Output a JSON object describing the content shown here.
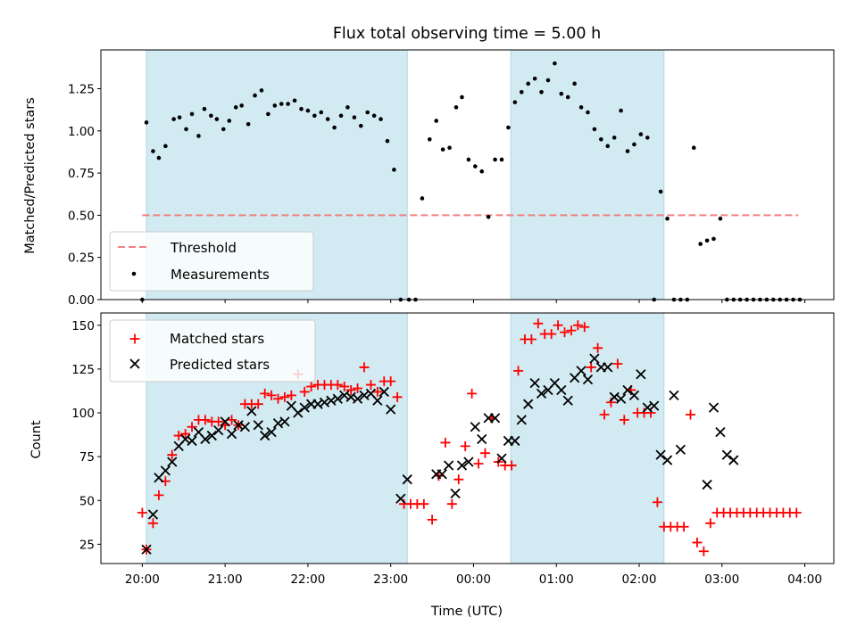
{
  "chart_data": [
    {
      "type": "scatter",
      "title": "Flux total observing time = 5.00 h",
      "xlabel": "",
      "ylabel": "Matched/Predicted stars",
      "xlim": [
        -0.5,
        8.35
      ],
      "ylim": [
        0,
        1.48
      ],
      "yticks": [
        0.0,
        0.25,
        0.5,
        0.75,
        1.0,
        1.25
      ],
      "ytick_labels": [
        "0.00",
        "0.25",
        "0.50",
        "0.75",
        "1.00",
        "1.25"
      ],
      "shaded_spans": [
        [
          0.05,
          3.2
        ],
        [
          4.45,
          6.3
        ]
      ],
      "shade_color": "#add8e6",
      "legend": {
        "position": "lower-left",
        "entries": [
          "Threshold",
          "Measurements"
        ]
      },
      "series": [
        {
          "name": "Threshold",
          "kind": "line",
          "style": "dashed",
          "color": "#f08080",
          "x": [
            0.0,
            7.92
          ],
          "y": [
            0.5,
            0.5
          ]
        },
        {
          "name": "Measurements",
          "kind": "points",
          "color": "#000000",
          "x": [
            0.0,
            0.05,
            0.13,
            0.2,
            0.28,
            0.38,
            0.45,
            0.53,
            0.6,
            0.68,
            0.75,
            0.83,
            0.9,
            0.98,
            1.05,
            1.13,
            1.2,
            1.28,
            1.36,
            1.44,
            1.52,
            1.6,
            1.68,
            1.76,
            1.84,
            1.92,
            2.0,
            2.08,
            2.16,
            2.24,
            2.32,
            2.4,
            2.48,
            2.56,
            2.64,
            2.72,
            2.8,
            2.88,
            2.96,
            3.04,
            3.12,
            3.22,
            3.3,
            3.38,
            3.47,
            3.55,
            3.63,
            3.71,
            3.79,
            3.86,
            3.94,
            4.02,
            4.1,
            4.18,
            4.26,
            4.34,
            4.42,
            4.5,
            4.58,
            4.66,
            4.74,
            4.82,
            4.9,
            4.98,
            5.06,
            5.14,
            5.22,
            5.3,
            5.38,
            5.46,
            5.54,
            5.62,
            5.7,
            5.78,
            5.86,
            5.94,
            6.02,
            6.1,
            6.18,
            6.26,
            6.34,
            6.42,
            6.5,
            6.58,
            6.66,
            6.74,
            6.82,
            6.9,
            6.98,
            7.06,
            7.14,
            7.22,
            7.3,
            7.38,
            7.46,
            7.54,
            7.62,
            7.7,
            7.78,
            7.86,
            7.94
          ],
          "y": [
            0.0,
            1.05,
            0.88,
            0.84,
            0.91,
            1.07,
            1.08,
            1.01,
            1.1,
            0.97,
            1.13,
            1.09,
            1.07,
            1.01,
            1.06,
            1.14,
            1.15,
            1.04,
            1.21,
            1.24,
            1.1,
            1.15,
            1.16,
            1.16,
            1.18,
            1.13,
            1.12,
            1.09,
            1.11,
            1.07,
            1.02,
            1.09,
            1.14,
            1.08,
            1.03,
            1.11,
            1.09,
            1.07,
            0.94,
            0.77,
            0.0,
            0.0,
            0.0,
            0.6,
            0.95,
            1.06,
            0.89,
            0.9,
            1.14,
            1.2,
            0.83,
            0.79,
            0.76,
            0.49,
            0.83,
            0.83,
            1.02,
            1.17,
            1.23,
            1.28,
            1.31,
            1.23,
            1.3,
            1.4,
            1.22,
            1.2,
            1.28,
            1.14,
            1.11,
            1.01,
            0.95,
            0.91,
            0.96,
            1.12,
            0.88,
            0.92,
            0.98,
            0.96,
            0.0,
            0.64,
            0.48,
            0.0,
            0.0,
            0.0,
            0.9,
            0.33,
            0.35,
            0.36,
            0.48,
            0.0,
            0.0,
            0.0,
            0.0,
            0.0,
            0.0,
            0.0,
            0.0,
            0.0,
            0.0,
            0.0,
            0.0
          ]
        }
      ]
    },
    {
      "type": "scatter",
      "xlabel": "Time (UTC)",
      "ylabel": "Count",
      "xlim": [
        -0.5,
        8.35
      ],
      "ylim": [
        14,
        157
      ],
      "yticks": [
        25,
        50,
        75,
        100,
        125,
        150
      ],
      "ytick_labels": [
        "25",
        "50",
        "75",
        "100",
        "125",
        "150"
      ],
      "xticks": [
        0,
        1,
        2,
        3,
        4,
        5,
        6,
        7,
        8
      ],
      "xtick_labels": [
        "20:00",
        "21:00",
        "22:00",
        "23:00",
        "00:00",
        "01:00",
        "02:00",
        "03:00",
        "04:00"
      ],
      "shaded_spans": [
        [
          0.05,
          3.2
        ],
        [
          4.45,
          6.3
        ]
      ],
      "shade_color": "#add8e6",
      "legend": {
        "position": "top-left",
        "entries": [
          "Matched stars",
          "Predicted stars"
        ]
      },
      "series": [
        {
          "name": "Matched stars",
          "marker": "plus",
          "color": "#ff0000",
          "x": [
            0.0,
            0.05,
            0.13,
            0.2,
            0.28,
            0.36,
            0.44,
            0.52,
            0.6,
            0.68,
            0.76,
            0.84,
            0.92,
            1.0,
            1.08,
            1.16,
            1.24,
            1.32,
            1.4,
            1.48,
            1.56,
            1.64,
            1.72,
            1.8,
            1.88,
            1.96,
            2.04,
            2.12,
            2.2,
            2.28,
            2.36,
            2.44,
            2.52,
            2.6,
            2.68,
            2.76,
            2.84,
            2.92,
            3.0,
            3.08,
            3.16,
            3.24,
            3.32,
            3.4,
            3.5,
            3.58,
            3.66,
            3.74,
            3.82,
            3.9,
            3.98,
            4.06,
            4.14,
            4.22,
            4.3,
            4.38,
            4.46,
            4.54,
            4.62,
            4.7,
            4.78,
            4.86,
            4.94,
            5.02,
            5.1,
            5.18,
            5.26,
            5.34,
            5.42,
            5.5,
            5.58,
            5.66,
            5.74,
            5.82,
            5.9,
            5.98,
            6.06,
            6.14,
            6.22,
            6.3,
            6.38,
            6.46,
            6.54,
            6.62,
            6.7,
            6.78,
            6.86,
            6.94,
            7.02,
            7.1,
            7.18,
            7.26,
            7.34,
            7.42,
            7.5,
            7.58,
            7.66,
            7.74,
            7.82,
            7.9
          ],
          "y": [
            43,
            22,
            37,
            53,
            61,
            76,
            87,
            88,
            92,
            96,
            96,
            95,
            95,
            93,
            96,
            93,
            105,
            105,
            105,
            111,
            110,
            108,
            109,
            110,
            122,
            112,
            115,
            116,
            116,
            116,
            116,
            115,
            113,
            114,
            126,
            116,
            112,
            118,
            118,
            109,
            48,
            48,
            48,
            48,
            39,
            64,
            83,
            48,
            62,
            81,
            111,
            71,
            77,
            97,
            72,
            70,
            70,
            124,
            142,
            142,
            151,
            145,
            145,
            150,
            146,
            147,
            150,
            149,
            126,
            137,
            99,
            106,
            128,
            96,
            113,
            100,
            100,
            100,
            49,
            35,
            35,
            35,
            35,
            99,
            26,
            21,
            37,
            43,
            43,
            43,
            43,
            43,
            43,
            43,
            43,
            43,
            43,
            43,
            43,
            43
          ],
          "y_display": [
            43,
            22,
            37,
            53,
            61,
            76,
            87,
            88,
            92,
            96,
            96,
            95,
            95,
            93,
            96,
            93,
            105,
            105,
            105,
            111,
            110,
            108,
            109,
            110,
            122,
            112,
            115,
            116,
            116,
            116,
            116,
            115,
            113,
            114,
            126,
            116,
            112,
            118,
            118,
            109,
            48,
            48,
            48,
            48,
            39,
            64,
            83,
            48,
            62,
            81,
            111,
            71,
            77,
            97,
            72,
            70,
            70,
            124,
            142,
            142,
            151,
            145,
            145,
            150,
            146,
            147,
            150,
            149,
            126,
            137,
            99,
            106,
            128,
            96,
            113,
            100,
            100,
            100,
            49,
            35,
            35,
            35,
            35,
            99,
            26,
            21,
            37,
            43,
            43,
            43,
            43,
            43,
            43,
            43,
            43,
            43,
            43,
            43,
            43,
            43
          ]
        },
        {
          "name": "Predicted stars",
          "marker": "x",
          "color": "#000000",
          "x": [
            0.05,
            0.13,
            0.2,
            0.28,
            0.36,
            0.44,
            0.52,
            0.6,
            0.68,
            0.76,
            0.84,
            0.92,
            1.0,
            1.08,
            1.16,
            1.24,
            1.32,
            1.4,
            1.48,
            1.56,
            1.64,
            1.72,
            1.8,
            1.88,
            1.96,
            2.04,
            2.12,
            2.2,
            2.28,
            2.36,
            2.44,
            2.52,
            2.6,
            2.68,
            2.76,
            2.84,
            2.92,
            3.0,
            3.12,
            3.2,
            3.55,
            3.62,
            3.7,
            3.78,
            3.86,
            3.94,
            4.02,
            4.1,
            4.18,
            4.26,
            4.34,
            4.42,
            4.5,
            4.58,
            4.66,
            4.74,
            4.82,
            4.9,
            4.98,
            5.06,
            5.14,
            5.22,
            5.3,
            5.38,
            5.46,
            5.54,
            5.62,
            5.7,
            5.78,
            5.86,
            5.94,
            6.02,
            6.1,
            6.18,
            6.26,
            6.34,
            6.42,
            6.5,
            6.82,
            6.9,
            6.98,
            7.06,
            7.14
          ],
          "y": [
            22,
            42,
            63,
            67,
            72,
            81,
            85,
            84,
            89,
            85,
            87,
            90,
            95,
            88,
            93,
            92,
            101,
            93,
            87,
            89,
            94,
            95,
            104,
            100,
            103,
            105,
            105,
            106,
            107,
            108,
            110,
            109,
            108,
            110,
            111,
            107,
            112,
            102,
            51,
            62,
            65,
            65,
            70,
            54,
            70,
            72,
            92,
            85,
            97,
            97,
            74,
            84,
            84,
            96,
            105,
            117,
            111,
            113,
            117,
            113,
            107,
            120,
            124,
            119,
            131,
            126,
            126,
            109,
            108,
            113,
            110,
            122,
            103,
            104,
            76,
            73,
            110,
            79,
            59,
            103,
            89,
            76,
            73
          ],
          "y_display": [
            22,
            42,
            63,
            67,
            72,
            81,
            85,
            84,
            89,
            85,
            87,
            90,
            95,
            88,
            93,
            92,
            101,
            93,
            87,
            89,
            94,
            95,
            104,
            100,
            103,
            105,
            105,
            106,
            107,
            108,
            110,
            109,
            108,
            110,
            111,
            107,
            112,
            102,
            51,
            62,
            65,
            65,
            70,
            54,
            70,
            72,
            92,
            85,
            97,
            97,
            74,
            84,
            84,
            96,
            105,
            117,
            111,
            113,
            117,
            113,
            107,
            120,
            124,
            119,
            131,
            126,
            126,
            109,
            108,
            113,
            110,
            122,
            103,
            104,
            76,
            73,
            110,
            79,
            59,
            103,
            89,
            76,
            73
          ]
        }
      ]
    }
  ]
}
